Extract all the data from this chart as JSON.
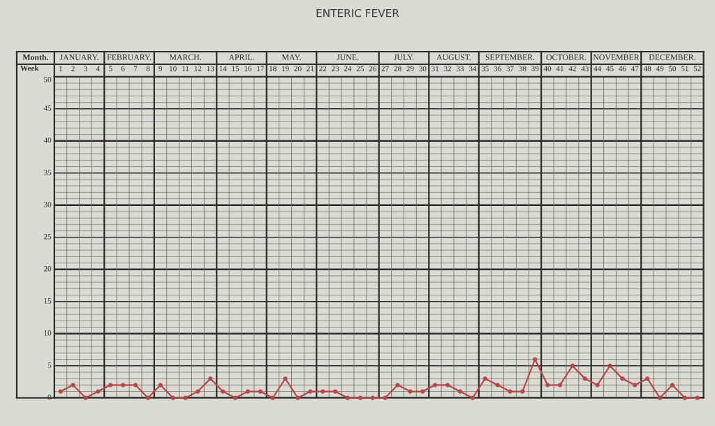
{
  "chart_data": {
    "type": "line",
    "title": "ENTERIC FEVER",
    "categories": [
      "1",
      "2",
      "3",
      "4",
      "5",
      "6",
      "7",
      "8",
      "9",
      "10",
      "11",
      "12",
      "13",
      "14",
      "15",
      "16",
      "17",
      "18",
      "19",
      "20",
      "21",
      "22",
      "23",
      "24",
      "25",
      "26",
      "27",
      "28",
      "29",
      "30",
      "31",
      "32",
      "33",
      "34",
      "35",
      "36",
      "37",
      "38",
      "39",
      "40",
      "41",
      "42",
      "43",
      "44",
      "45",
      "46",
      "47",
      "48",
      "49",
      "50",
      "51",
      "52"
    ],
    "series": [
      {
        "color": "#b5484a",
        "values": [
          1,
          2,
          0,
          1,
          2,
          2,
          2,
          0,
          2,
          0,
          0,
          1,
          3,
          1,
          0,
          1,
          1,
          0,
          3,
          0,
          1,
          1,
          1,
          0,
          0,
          0,
          0,
          2,
          1,
          1,
          2,
          2,
          1,
          0,
          3,
          2,
          1,
          1,
          6,
          2,
          2,
          5,
          3,
          2,
          5,
          3,
          2,
          3,
          0,
          2,
          0,
          0
        ]
      }
    ],
    "ylim": [
      0,
      50
    ],
    "yticks": [
      0,
      5,
      10,
      15,
      20,
      25,
      30,
      35,
      40,
      45,
      50
    ],
    "grid": true,
    "marker": "circle",
    "line_style": "solid",
    "annotations": [
      "Month.",
      "Week",
      "JANUARY.",
      "FEBRUARY.",
      "MARCH.",
      "APRIL.",
      "MAY.",
      "JUNE.",
      "JULY.",
      "AUGUST.",
      "SEPTEMBER.",
      "OCTOBER.",
      "NOVEMBER",
      "DECEMBER."
    ]
  }
}
